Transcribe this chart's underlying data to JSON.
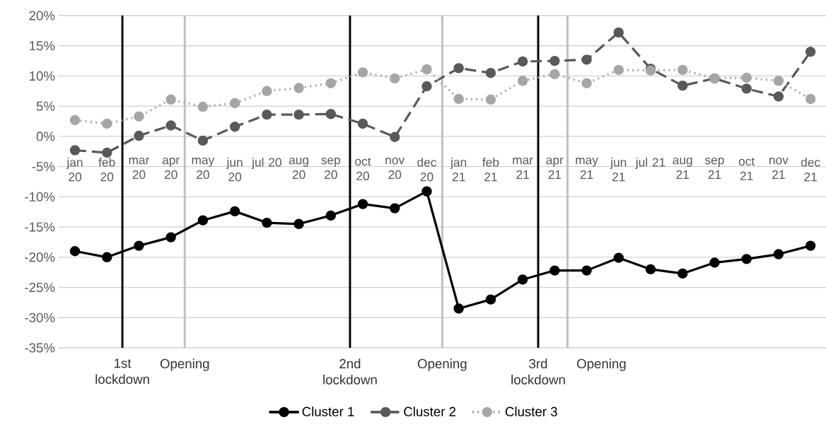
{
  "chart_data": {
    "type": "line",
    "x": [
      "2020-01",
      "2020-02",
      "2020-03",
      "2020-04",
      "2020-05",
      "2020-06",
      "2020-07",
      "2020-08",
      "2020-09",
      "2020-10",
      "2020-11",
      "2020-12",
      "2021-01",
      "2021-02",
      "2021-03",
      "2021-04",
      "2021-05",
      "2021-06",
      "2021-07",
      "2021-08",
      "2021-09",
      "2021-10",
      "2021-11",
      "2021-12"
    ],
    "xlim": [
      "2019-12-16",
      "2021-12-16"
    ],
    "xticks": [
      {
        "value": "2020-01",
        "label": "jan 20"
      },
      {
        "value": "2020-02",
        "label": "feb 20"
      },
      {
        "value": "2020-03",
        "label": "mar 20"
      },
      {
        "value": "2020-04",
        "label": "apr 20"
      },
      {
        "value": "2020-05",
        "label": "may 20"
      },
      {
        "value": "2020-06",
        "label": "jun 20"
      },
      {
        "value": "2020-07",
        "label": "jul 20"
      },
      {
        "value": "2020-08",
        "label": "aug 20"
      },
      {
        "value": "2020-09",
        "label": "sep 20"
      },
      {
        "value": "2020-10",
        "label": "oct 20"
      },
      {
        "value": "2020-11",
        "label": "nov 20"
      },
      {
        "value": "2020-12",
        "label": "dec 20"
      },
      {
        "value": "2021-01",
        "label": "jan 21"
      },
      {
        "value": "2021-02",
        "label": "feb 21"
      },
      {
        "value": "2021-03",
        "label": "mar 21"
      },
      {
        "value": "2021-04",
        "label": "apr 21"
      },
      {
        "value": "2021-05",
        "label": "may 21"
      },
      {
        "value": "2021-06",
        "label": "jun 21"
      },
      {
        "value": "2021-07",
        "label": "jul 21"
      },
      {
        "value": "2021-08",
        "label": "aug 21"
      },
      {
        "value": "2021-09",
        "label": "sep 21"
      },
      {
        "value": "2021-10",
        "label": "oct 21"
      },
      {
        "value": "2021-11",
        "label": "nov 21"
      },
      {
        "value": "2021-12",
        "label": "dec 21"
      }
    ],
    "series": [
      {
        "name": "Cluster 1",
        "color": "#000000",
        "marker": "circle",
        "line_style": "solid",
        "values": [
          -19.0,
          -20.0,
          -18.1,
          -16.7,
          -13.9,
          -12.4,
          -14.3,
          -14.5,
          -13.1,
          -11.2,
          -11.9,
          -9.1,
          -28.5,
          -27.0,
          -23.7,
          -22.2,
          -22.2,
          -20.1,
          -22.0,
          -22.7,
          -20.9,
          -20.3,
          -19.5,
          -18.1
        ]
      },
      {
        "name": "Cluster 2",
        "color": "#595959",
        "marker": "circle",
        "line_style": "dashed",
        "values": [
          -2.3,
          -2.7,
          0.1,
          1.8,
          -0.7,
          1.6,
          3.6,
          3.6,
          3.7,
          2.1,
          -0.1,
          8.3,
          11.3,
          10.5,
          12.4,
          12.5,
          12.7,
          17.2,
          11.2,
          8.4,
          9.6,
          7.9,
          6.6,
          14.0
        ]
      },
      {
        "name": "Cluster 3",
        "color": "#a6a6a6",
        "marker": "circle",
        "line_style": "dotted",
        "values": [
          2.7,
          2.1,
          3.3,
          6.1,
          4.9,
          5.5,
          7.5,
          8.0,
          8.8,
          10.6,
          9.6,
          11.1,
          6.2,
          6.1,
          9.2,
          10.3,
          8.8,
          11.0,
          10.9,
          11.0,
          9.6,
          9.7,
          9.2,
          6.2
        ]
      }
    ],
    "ylim": [
      -35,
      20
    ],
    "yticks": [
      {
        "value": -35,
        "label": "-35%"
      },
      {
        "value": -30,
        "label": "-30%"
      },
      {
        "value": -25,
        "label": "-25%"
      },
      {
        "value": -20,
        "label": "-20%"
      },
      {
        "value": -15,
        "label": "-15%"
      },
      {
        "value": -10,
        "label": "-10%"
      },
      {
        "value": -5,
        "label": "-5%"
      },
      {
        "value": 0,
        "label": "0%"
      },
      {
        "value": 5,
        "label": "5%"
      },
      {
        "value": 10,
        "label": "10%"
      },
      {
        "value": 15,
        "label": "15%"
      },
      {
        "value": 20,
        "label": "20%"
      }
    ],
    "grid": "y",
    "legend": "bottom",
    "ref_lines": [
      {
        "axis": "x",
        "value": "2020-02-15",
        "label": "1st lockdown",
        "color": "#000000"
      },
      {
        "axis": "x",
        "value": "2020-04-14",
        "label": "Opening",
        "color": "#bfbfbf"
      },
      {
        "axis": "x",
        "value": "2020-09-19",
        "label": "2nd lockdown",
        "color": "#000000"
      },
      {
        "axis": "x",
        "value": "2020-12-16",
        "label": "Opening",
        "color": "#bfbfbf"
      },
      {
        "axis": "x",
        "value": "2021-03-16",
        "label": "3rd lockdown",
        "color": "#000000"
      },
      {
        "axis": "x",
        "value": "2021-04-13",
        "label": "Opening",
        "color": "#bfbfbf"
      }
    ]
  }
}
